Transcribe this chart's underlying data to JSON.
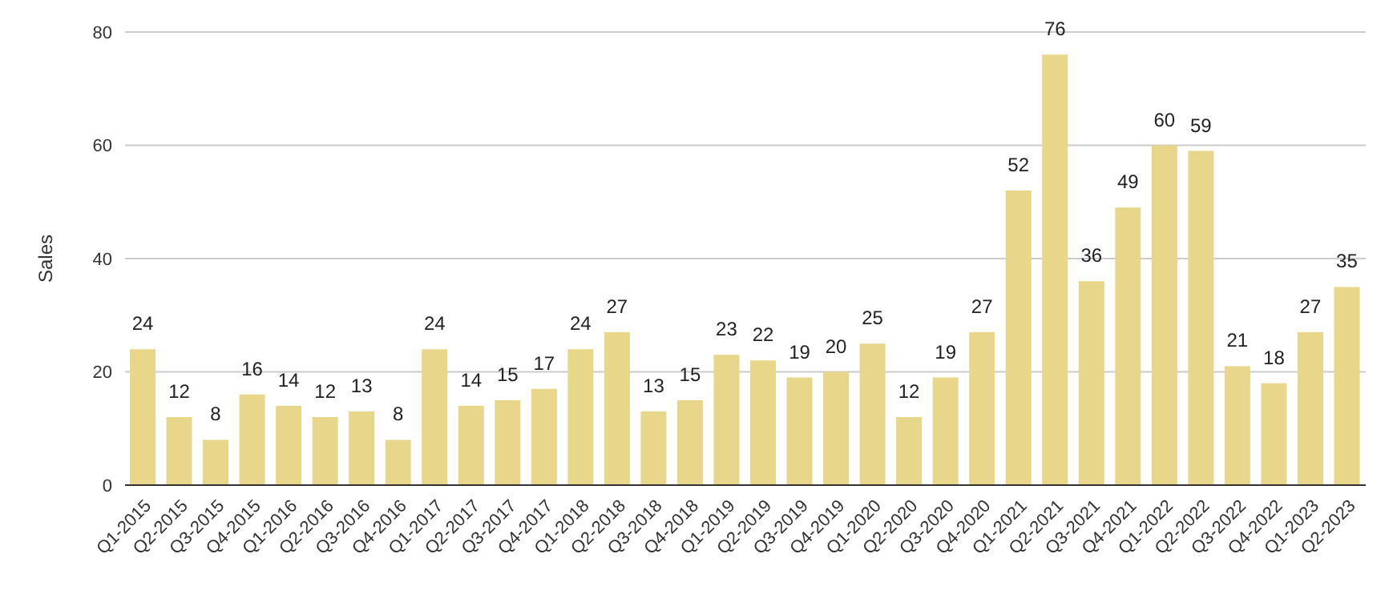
{
  "chart_data": {
    "type": "bar",
    "ylabel": "Sales",
    "categories": [
      "Q1-2015",
      "Q2-2015",
      "Q3-2015",
      "Q4-2015",
      "Q1-2016",
      "Q2-2016",
      "Q3-2016",
      "Q4-2016",
      "Q1-2017",
      "Q2-2017",
      "Q3-2017",
      "Q4-2017",
      "Q1-2018",
      "Q2-2018",
      "Q3-2018",
      "Q4-2018",
      "Q1-2019",
      "Q2-2019",
      "Q3-2019",
      "Q4-2019",
      "Q1-2020",
      "Q2-2020",
      "Q3-2020",
      "Q4-2020",
      "Q1-2021",
      "Q2-2021",
      "Q3-2021",
      "Q4-2021",
      "Q1-2022",
      "Q2-2022",
      "Q3-2022",
      "Q4-2022",
      "Q1-2023",
      "Q2-2023"
    ],
    "values": [
      24,
      12,
      8,
      16,
      14,
      12,
      13,
      8,
      24,
      14,
      15,
      17,
      24,
      27,
      13,
      15,
      23,
      22,
      19,
      20,
      25,
      12,
      19,
      27,
      52,
      76,
      36,
      49,
      60,
      59,
      21,
      18,
      27,
      35
    ],
    "color": "#e8d68a",
    "ylim": [
      0,
      80
    ],
    "yticks": [
      0,
      20,
      40,
      60,
      80
    ],
    "grid": "y",
    "data_labels": true
  }
}
